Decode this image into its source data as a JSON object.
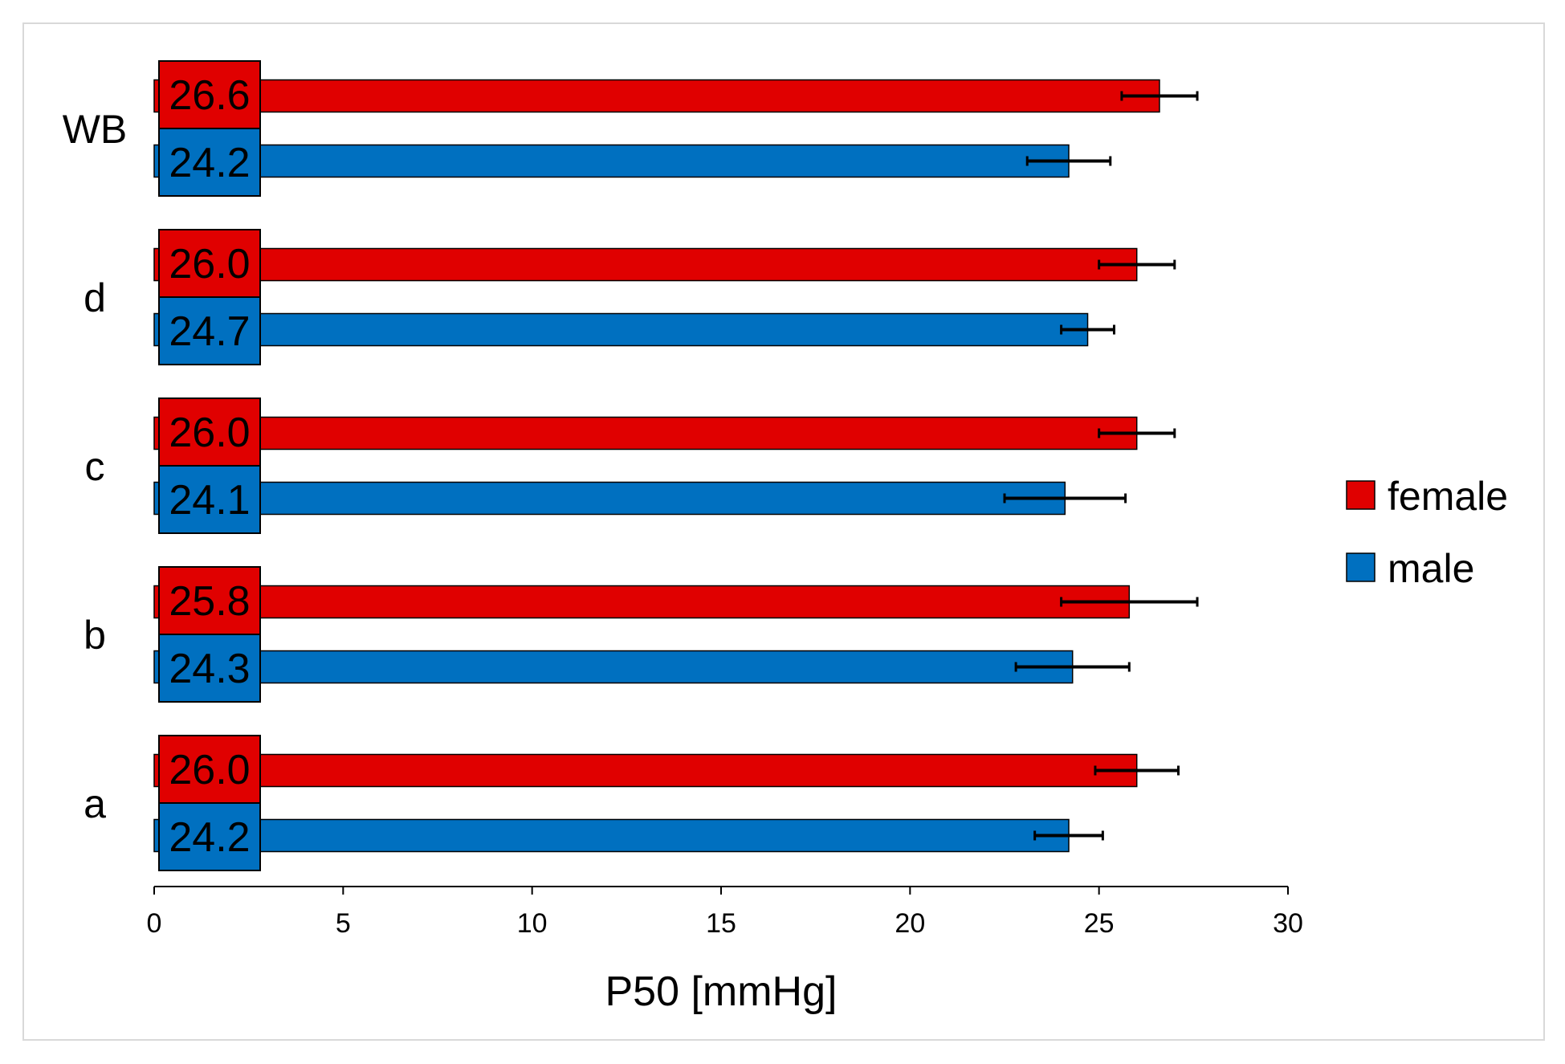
{
  "chart_data": {
    "type": "bar",
    "orientation": "horizontal",
    "categories": [
      "a",
      "b",
      "c",
      "d",
      "WB"
    ],
    "series": [
      {
        "name": "female",
        "color": "#e00000",
        "values": [
          26.0,
          25.8,
          26.0,
          26.0,
          26.6
        ],
        "errors": [
          1.1,
          1.8,
          1.0,
          1.0,
          1.0
        ],
        "value_labels": [
          "26.0",
          "25.8",
          "26.0",
          "26.0",
          "26.6"
        ]
      },
      {
        "name": "male",
        "color": "#0070c0",
        "values": [
          24.2,
          24.3,
          24.1,
          24.7,
          24.2
        ],
        "errors": [
          0.9,
          1.5,
          1.6,
          0.7,
          1.1
        ],
        "value_labels": [
          "24.2",
          "24.3",
          "24.1",
          "24.7",
          "24.2"
        ]
      }
    ],
    "xlabel": "P50 [mmHg]",
    "ylabel": "",
    "xlim": [
      0,
      30
    ],
    "xticks": [
      "0",
      "5",
      "10",
      "15",
      "20",
      "25",
      "30"
    ],
    "grid": false,
    "legend_position": "right"
  }
}
